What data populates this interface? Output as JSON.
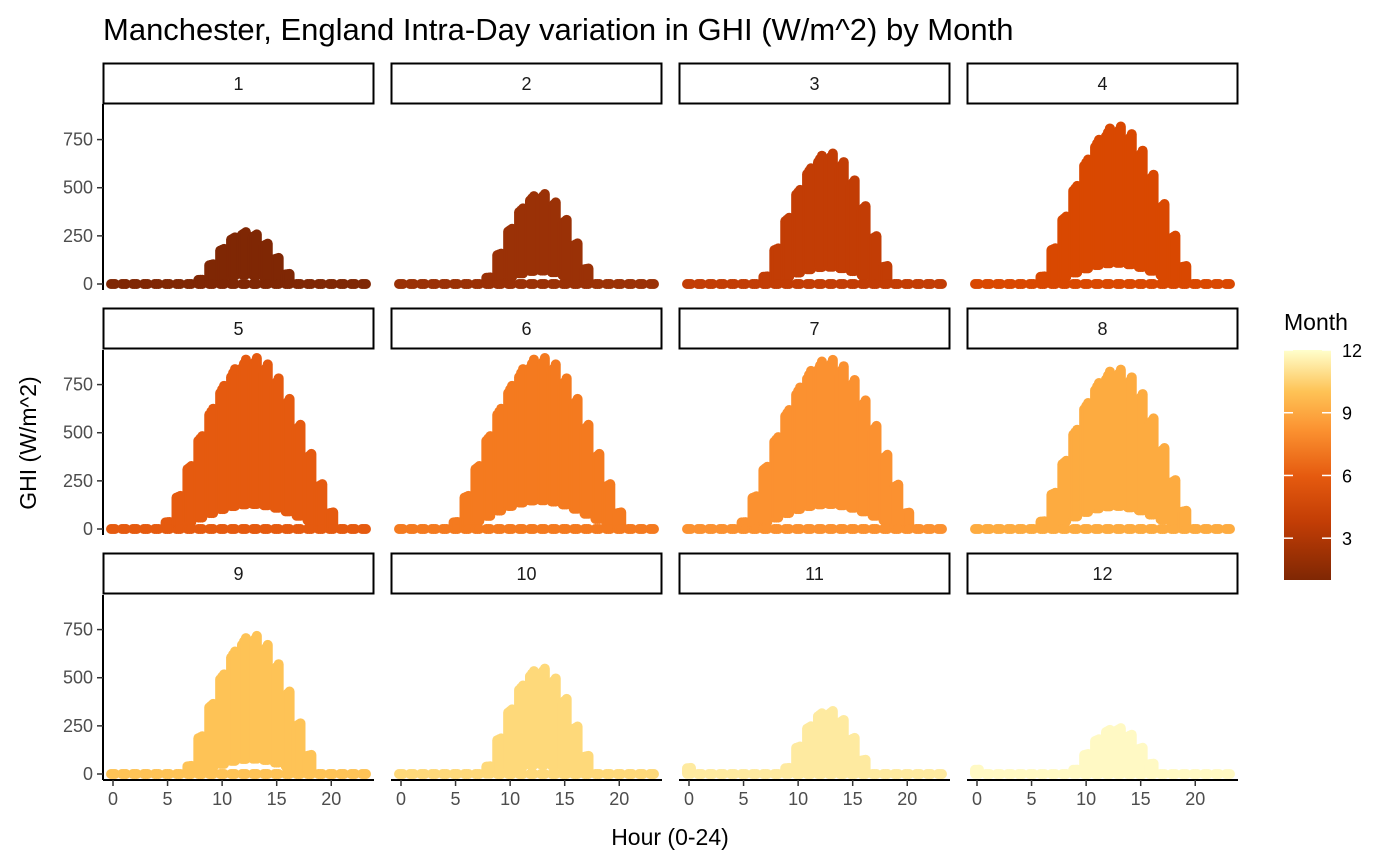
{
  "chart_data": {
    "type": "scatter",
    "title": "Manchester, England Intra-Day variation in GHI (W/m^2) by Month",
    "xlabel": "Hour (0-24)",
    "ylabel": "GHI (W/m^2)",
    "xlim": [
      0,
      23
    ],
    "ylim": [
      0,
      900
    ],
    "x_ticks": [
      "0",
      "5",
      "10",
      "15",
      "20"
    ],
    "y_ticks": [
      "0",
      "250",
      "500",
      "750"
    ],
    "facet_by": "Month",
    "facet_rows": 3,
    "facet_cols": 4,
    "grid": false,
    "legend": {
      "title": "Month",
      "type": "colorbar",
      "placement": "right",
      "range": [
        1,
        12
      ],
      "ticks": [
        "3",
        "6",
        "9",
        "12"
      ]
    },
    "colors": {
      "low": "#7f2704",
      "mid_low": "#d94801",
      "mid": "#fd8d3c",
      "mid_high": "#fdd87a",
      "high": "#ffffcc"
    },
    "panels": [
      {
        "month": "1",
        "sunrise_hour": 8,
        "sunset_hour": 16,
        "peak_max": 270,
        "peak_min": 50,
        "color": "#7f2704"
      },
      {
        "month": "2",
        "sunrise_hour": 8,
        "sunset_hour": 17,
        "peak_max": 470,
        "peak_min": 70,
        "color": "#9a3106"
      },
      {
        "month": "3",
        "sunrise_hour": 7,
        "sunset_hour": 18,
        "peak_max": 680,
        "peak_min": 90,
        "color": "#c23d05"
      },
      {
        "month": "4",
        "sunrise_hour": 6,
        "sunset_hour": 19,
        "peak_max": 820,
        "peak_min": 110,
        "color": "#d94801"
      },
      {
        "month": "5",
        "sunrise_hour": 5,
        "sunset_hour": 20,
        "peak_max": 890,
        "peak_min": 130,
        "color": "#e55a0f"
      },
      {
        "month": "6",
        "sunrise_hour": 5,
        "sunset_hour": 20,
        "peak_max": 890,
        "peak_min": 150,
        "color": "#f47a1f"
      },
      {
        "month": "7",
        "sunrise_hour": 5,
        "sunset_hour": 20,
        "peak_max": 880,
        "peak_min": 130,
        "color": "#fb9130"
      },
      {
        "month": "8",
        "sunrise_hour": 6,
        "sunset_hour": 19,
        "peak_max": 830,
        "peak_min": 120,
        "color": "#fdab40"
      },
      {
        "month": "9",
        "sunrise_hour": 7,
        "sunset_hour": 18,
        "peak_max": 720,
        "peak_min": 80,
        "color": "#fec356"
      },
      {
        "month": "10",
        "sunrise_hour": 8,
        "sunset_hour": 17,
        "peak_max": 550,
        "peak_min": 50,
        "color": "#fed97a"
      },
      {
        "month": "11",
        "sunrise_hour": 9,
        "sunset_hour": 16,
        "peak_max": 330,
        "peak_min": 30,
        "color": "#feeaa0"
      },
      {
        "month": "12",
        "sunrise_hour": 9,
        "sunset_hour": 16,
        "peak_max": 240,
        "peak_min": 20,
        "color": "#fff9c4"
      }
    ]
  }
}
